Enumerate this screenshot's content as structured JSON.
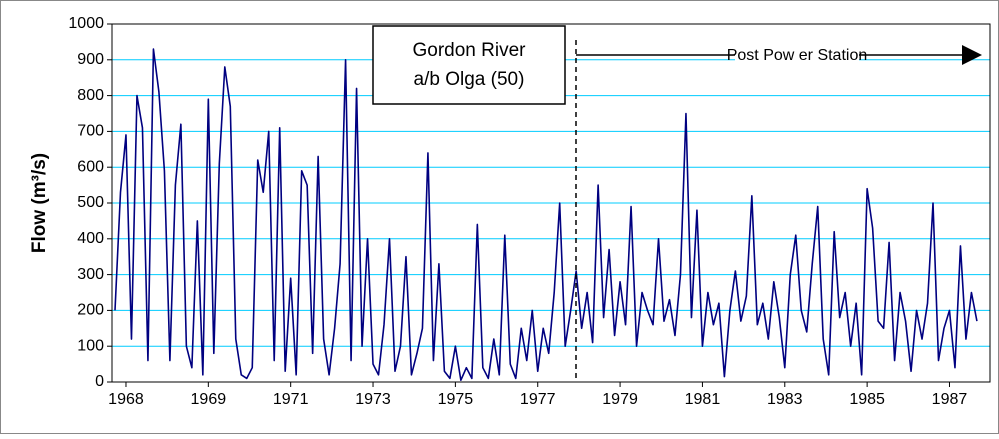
{
  "chart_data": {
    "type": "line",
    "y_label": "Flow (m³/s)",
    "annotations": [
      "Gordon River",
      "a/b Olga (50)",
      "Post Pow er Station"
    ],
    "color": "#000080",
    "grid": true,
    "grid_color": "#00ccff",
    "ylim": [
      0,
      1000
    ],
    "yticks": [
      0,
      100,
      200,
      300,
      400,
      500,
      600,
      700,
      800,
      900,
      1000
    ],
    "categories": [
      null,
      null,
      "1968",
      null,
      null,
      null,
      null,
      null,
      null,
      null,
      null,
      null,
      null,
      null,
      null,
      null,
      null,
      "1969",
      null,
      null,
      null,
      null,
      null,
      null,
      null,
      null,
      null,
      null,
      null,
      null,
      null,
      null,
      "1971",
      null,
      null,
      null,
      null,
      null,
      null,
      null,
      null,
      null,
      null,
      null,
      null,
      null,
      null,
      "1973",
      null,
      null,
      null,
      null,
      null,
      null,
      null,
      null,
      null,
      null,
      null,
      null,
      null,
      null,
      "1975",
      null,
      null,
      null,
      null,
      null,
      null,
      null,
      null,
      null,
      null,
      null,
      null,
      null,
      null,
      "1977",
      null,
      null,
      null,
      null,
      null,
      null,
      null,
      null,
      null,
      null,
      null,
      null,
      null,
      null,
      "1979",
      null,
      null,
      null,
      null,
      null,
      null,
      null,
      null,
      null,
      null,
      null,
      null,
      null,
      null,
      "1981",
      null,
      null,
      null,
      null,
      null,
      null,
      null,
      null,
      null,
      null,
      null,
      null,
      null,
      null,
      "1983",
      null,
      null,
      null,
      null,
      null,
      null,
      null,
      null,
      null,
      null,
      null,
      null,
      null,
      null,
      "1985",
      null,
      null,
      null,
      null,
      null,
      null,
      null,
      null,
      null,
      null,
      null,
      null,
      null,
      null,
      "1987",
      null,
      null,
      null,
      null,
      null
    ],
    "values": [
      200,
      530,
      690,
      120,
      800,
      710,
      60,
      930,
      810,
      590,
      60,
      550,
      720,
      100,
      40,
      450,
      20,
      790,
      80,
      610,
      880,
      770,
      120,
      20,
      10,
      40,
      620,
      530,
      700,
      60,
      710,
      30,
      290,
      20,
      590,
      550,
      80,
      630,
      120,
      20,
      150,
      330,
      900,
      60,
      820,
      100,
      400,
      50,
      20,
      160,
      400,
      30,
      100,
      350,
      20,
      80,
      150,
      640,
      60,
      330,
      30,
      10,
      100,
      5,
      40,
      10,
      440,
      40,
      10,
      120,
      20,
      410,
      50,
      10,
      150,
      60,
      200,
      30,
      150,
      80,
      250,
      500,
      100,
      200,
      310,
      150,
      250,
      110,
      550,
      180,
      370,
      130,
      280,
      160,
      490,
      100,
      250,
      200,
      160,
      400,
      170,
      230,
      130,
      300,
      750,
      180,
      480,
      100,
      250,
      160,
      220,
      15,
      200,
      310,
      170,
      240,
      520,
      160,
      220,
      120,
      280,
      180,
      40,
      300,
      410,
      200,
      140,
      330,
      490,
      120,
      20,
      420,
      180,
      250,
      100,
      220,
      20,
      540,
      430,
      170,
      150,
      390,
      60,
      250,
      170,
      30,
      200,
      120,
      220,
      500,
      60,
      150,
      200,
      40,
      380,
      120,
      250,
      170
    ]
  }
}
